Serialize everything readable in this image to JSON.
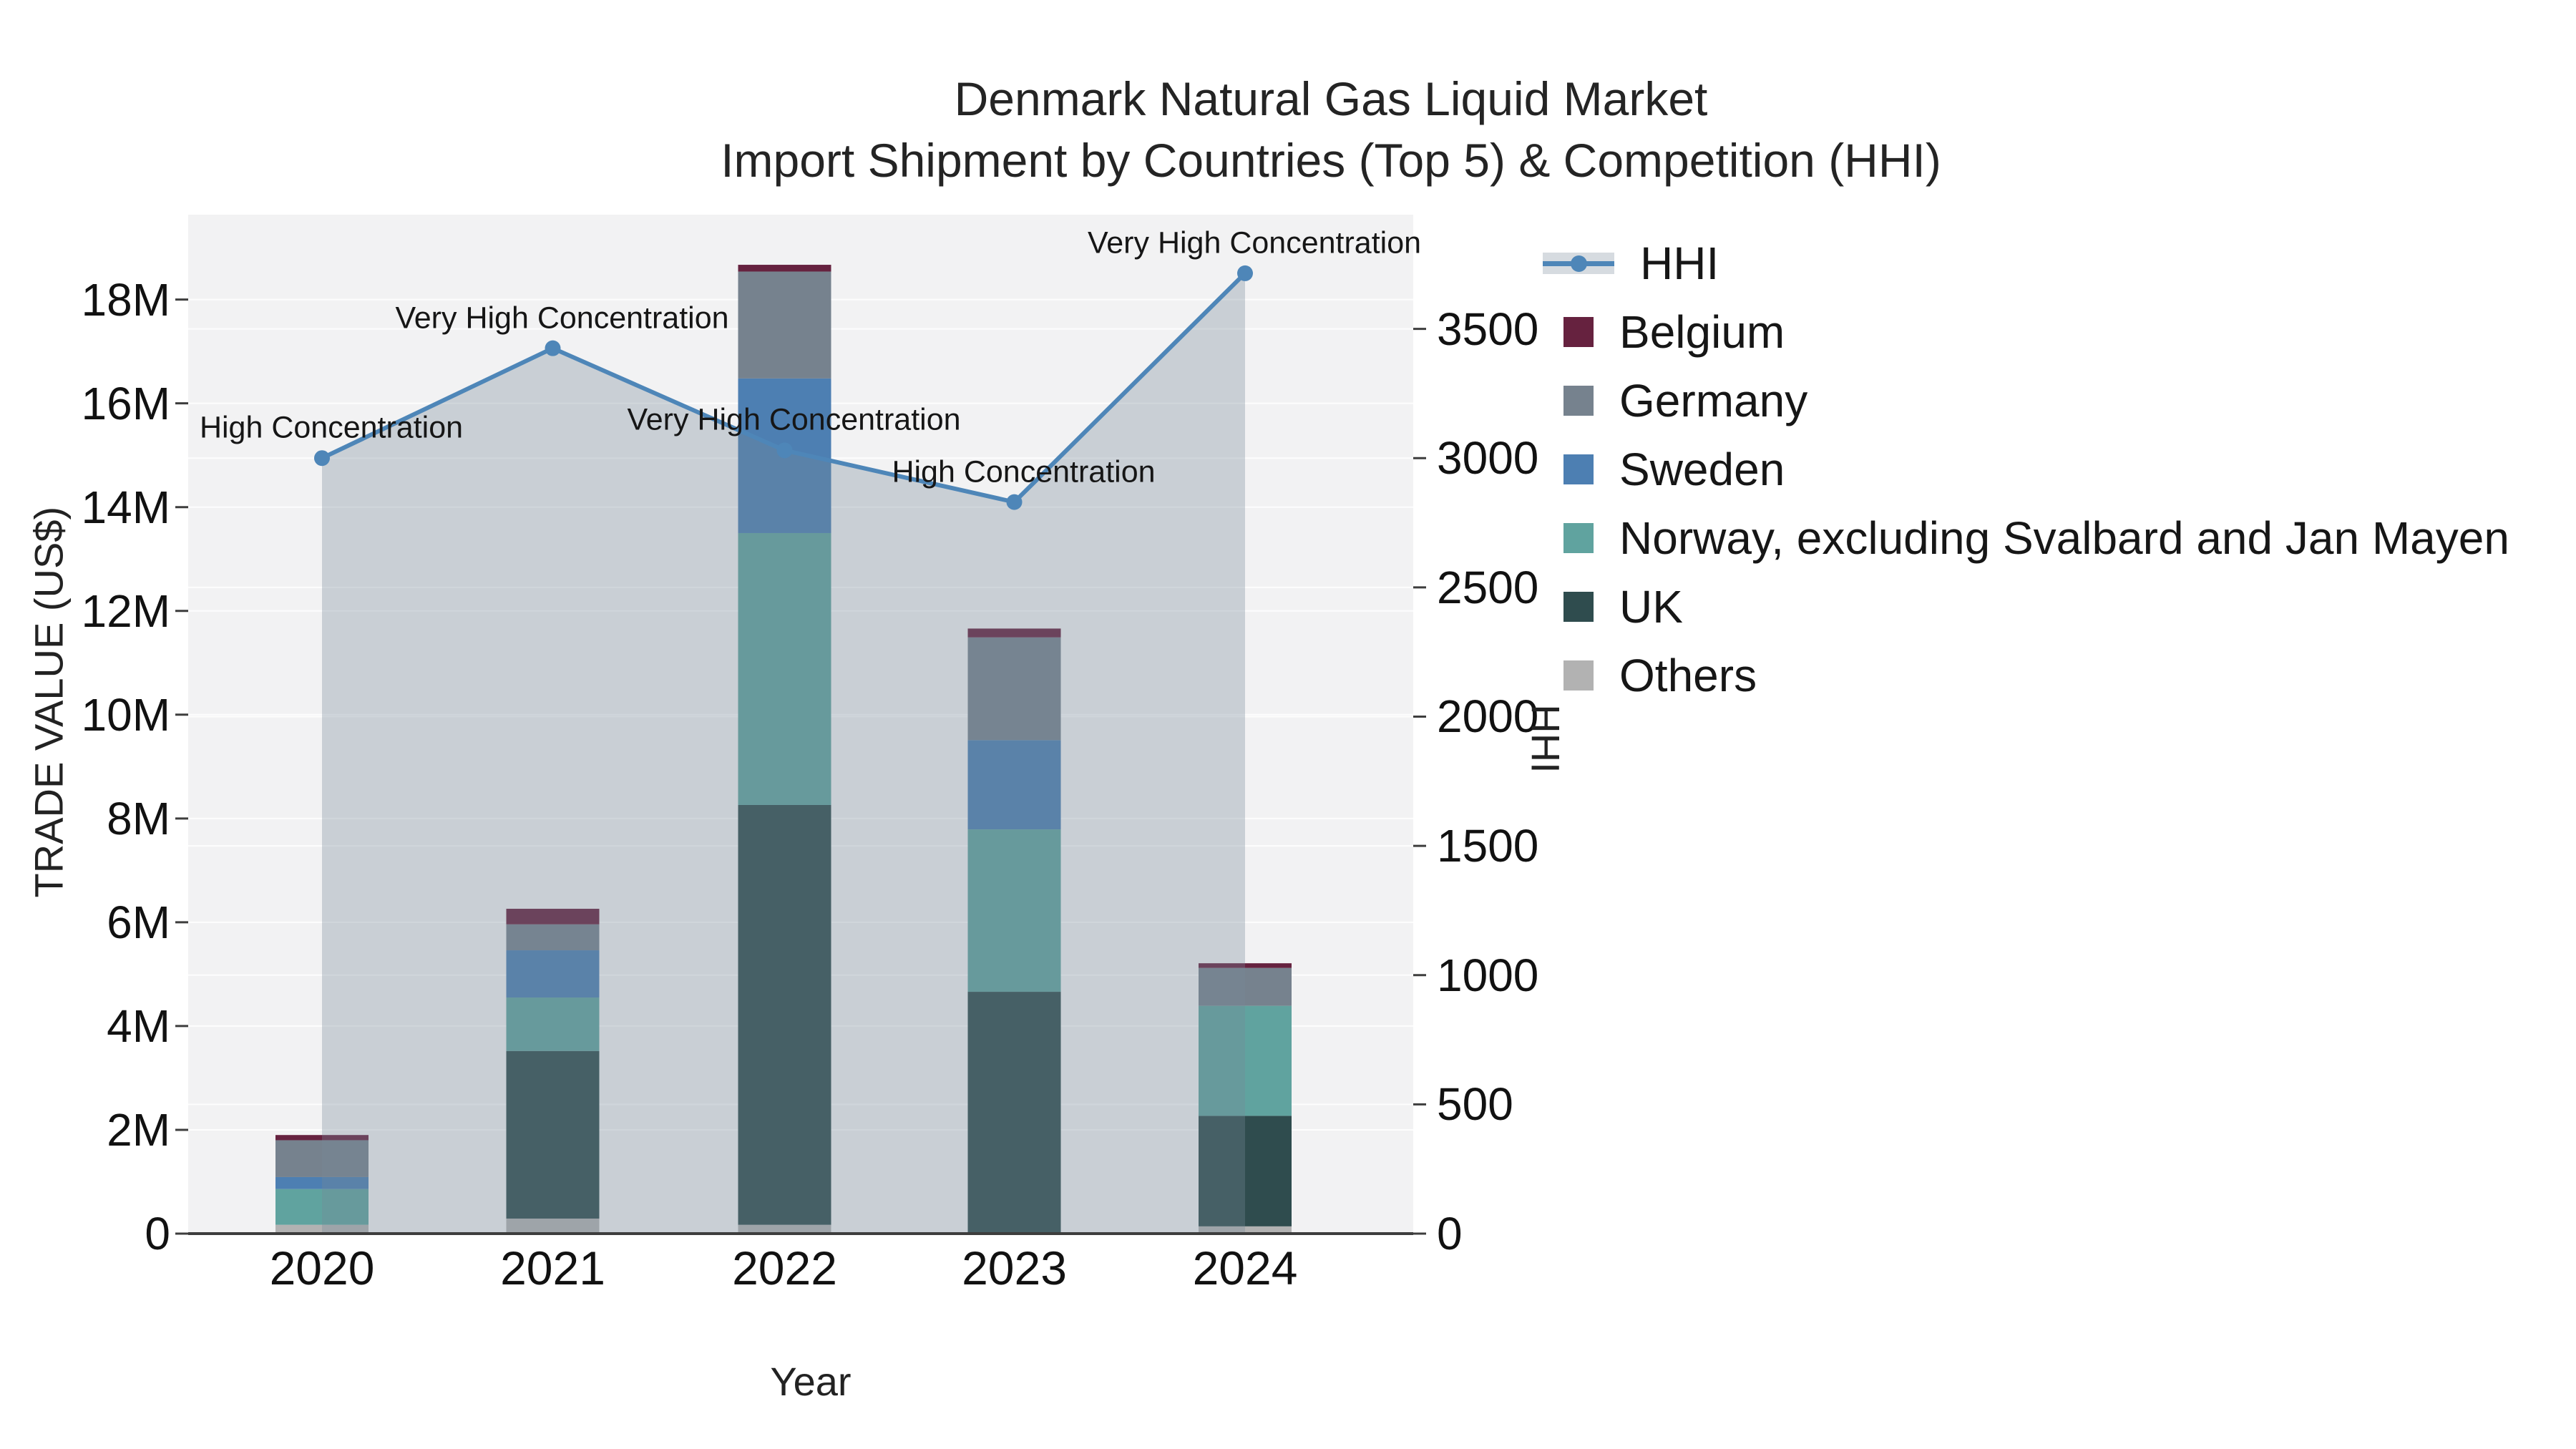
{
  "title": {
    "line1": "Denmark Natural Gas Liquid Market",
    "line2": "Import Shipment by Countries (Top 5) & Competition (HHI)"
  },
  "axes": {
    "y_left": {
      "title": "TRADE VALUE (US$)",
      "tick_labels": [
        "0",
        "2M",
        "4M",
        "6M",
        "8M",
        "10M",
        "12M",
        "14M",
        "16M",
        "18M"
      ],
      "tick_values": [
        0,
        2,
        4,
        6,
        8,
        10,
        12,
        14,
        16,
        18
      ],
      "unit": "million US$"
    },
    "y_right": {
      "title": "HHI",
      "tick_labels": [
        "0",
        "500",
        "1000",
        "1500",
        "2000",
        "2500",
        "3000",
        "3500"
      ],
      "tick_values": [
        0,
        500,
        1000,
        1500,
        2000,
        2500,
        3000,
        3500
      ]
    },
    "x": {
      "title": "Year",
      "categories": [
        "2020",
        "2021",
        "2022",
        "2023",
        "2024"
      ]
    }
  },
  "legend": {
    "items": [
      {
        "label": "HHI",
        "type": "line",
        "color": "#4e86b8"
      },
      {
        "label": "Belgium",
        "type": "bar",
        "color": "#66223f"
      },
      {
        "label": "Germany",
        "type": "bar",
        "color": "#76828e"
      },
      {
        "label": "Sweden",
        "type": "bar",
        "color": "#4d7fb2"
      },
      {
        "label": "Norway, excluding Svalbard and Jan Mayen",
        "type": "bar",
        "color": "#60a39f"
      },
      {
        "label": "UK",
        "type": "bar",
        "color": "#2f4c4e"
      },
      {
        "label": "Others",
        "type": "bar",
        "color": "#b2b2b2"
      }
    ]
  },
  "chart_data": {
    "type": "bar",
    "subtype": "stacked-bar-with-line",
    "title": "Denmark Natural Gas Liquid Market — Import Shipment by Countries (Top 5) & Competition (HHI)",
    "xlabel": "Year",
    "ylabel_left": "TRADE VALUE (US$)",
    "ylabel_right": "HHI",
    "ylim_left_millions": [
      0,
      19.6
    ],
    "ylim_right": [
      0,
      3850
    ],
    "grid": true,
    "categories": [
      "2020",
      "2021",
      "2022",
      "2023",
      "2024"
    ],
    "series": [
      {
        "name": "Others",
        "color": "#b2b2b2",
        "values_millions": [
          0.17,
          0.29,
          0.17,
          0.0,
          0.14
        ]
      },
      {
        "name": "UK",
        "color": "#2f4c4e",
        "values_millions": [
          0.0,
          3.23,
          8.09,
          4.66,
          2.13
        ]
      },
      {
        "name": "Norway, excluding Svalbard and Jan Mayen",
        "color": "#60a39f",
        "values_millions": [
          0.69,
          1.03,
          5.24,
          3.13,
          2.12
        ]
      },
      {
        "name": "Sweden",
        "color": "#4d7fb2",
        "values_millions": [
          0.23,
          0.91,
          2.98,
          1.72,
          0.0
        ]
      },
      {
        "name": "Germany",
        "color": "#76828e",
        "values_millions": [
          0.71,
          0.5,
          2.06,
          1.98,
          0.73
        ]
      },
      {
        "name": "Belgium",
        "color": "#66223f",
        "values_millions": [
          0.1,
          0.3,
          0.13,
          0.17,
          0.09
        ]
      }
    ],
    "bar_totals_millions": [
      1.9,
      6.26,
      18.67,
      11.66,
      5.21
    ],
    "hhi_line": {
      "name": "HHI",
      "color": "#4e86b8",
      "fill_color": "rgba(119,136,153,0.33)",
      "values": [
        3000,
        3425,
        3030,
        2830,
        3715
      ],
      "annotations": [
        "High Concentration",
        "Very High Concentration",
        "Very High Concentration",
        "High Concentration",
        "Very High Concentration"
      ]
    }
  },
  "colors": {
    "plot_background": "#f2f2f3",
    "figure_background": "#ffffff",
    "gridline": "#ffffff",
    "axis_line": "#3d3d3d",
    "text": "#161616",
    "hhi_line": "#4e86b8",
    "hhi_fill": "rgba(119,136,153,0.33)"
  }
}
